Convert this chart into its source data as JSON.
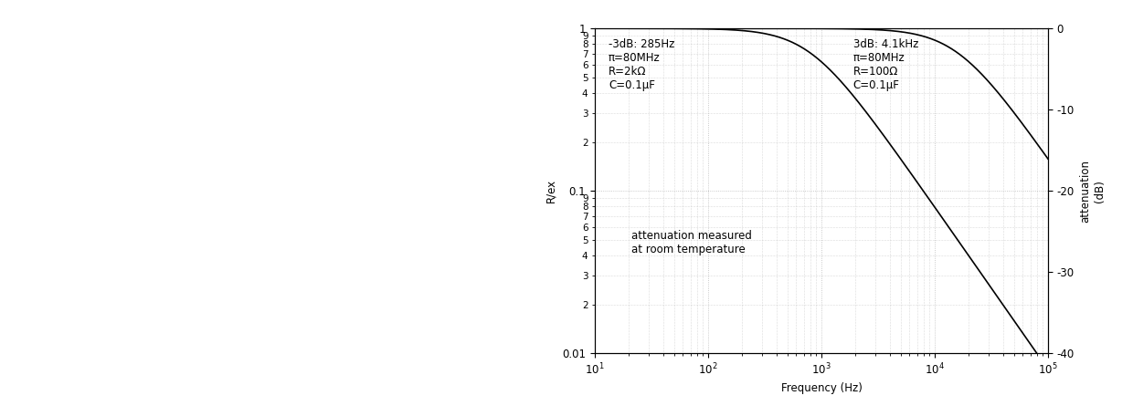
{
  "xlabel": "Frequency (Hz)",
  "ylabel_left": "R/ex",
  "ylabel_right": "attenuation\n(dB)",
  "annotation_text": "attenuation measured\nat room temperature",
  "label_left_lines": [
    "-3dB: 285Hz",
    "π=80MHz",
    "R=2kΩ",
    "C=0.1μF"
  ],
  "label_right_lines": [
    "3dB: 4.1kHz",
    "π=80MHz",
    "R=100Ω",
    "C=0.1μF"
  ],
  "curve1_R": 2000,
  "curve1_C": 1e-07,
  "curve2_R": 100,
  "curve2_C": 1e-07,
  "line_color": "#000000",
  "grid_color": "#bbbbbb",
  "bg_color": "#ffffff",
  "font_size": 8.5,
  "fig_width": 12.4,
  "fig_height": 4.45
}
